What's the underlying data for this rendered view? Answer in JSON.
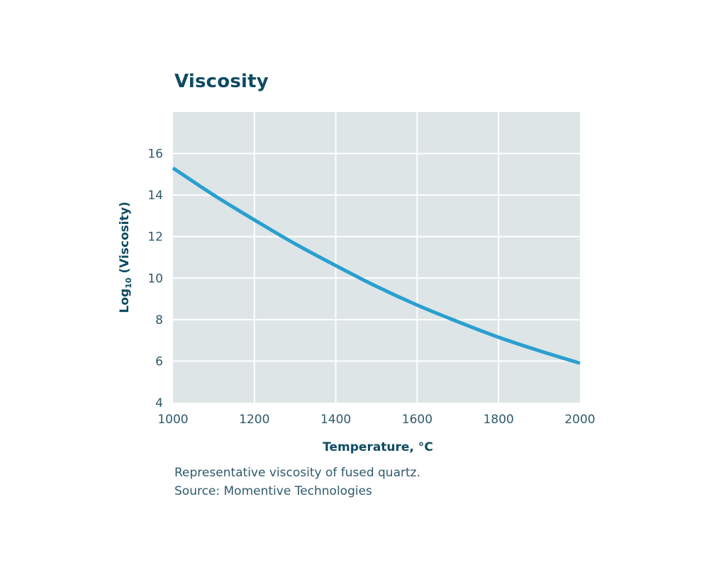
{
  "chart_data": {
    "type": "line",
    "title": "Viscosity",
    "xlabel": "Temperature, °C",
    "ylabel_main": "Log",
    "ylabel_subscript": "10",
    "ylabel_rest": " (Viscosity)",
    "xlim": [
      1000,
      2000
    ],
    "ylim": [
      4,
      18
    ],
    "x_ticks": [
      "1000",
      "1200",
      "1400",
      "1600",
      "1800",
      "2000"
    ],
    "y_ticks": [
      "4",
      "6",
      "8",
      "10",
      "12",
      "14",
      "16"
    ],
    "grid": true,
    "colors": {
      "line": "#2a9fd0",
      "plot_bg": "#dde5e7",
      "grid": "#ffffff",
      "title": "#0e4b63"
    },
    "series": [
      {
        "x": [
          1000,
          1100,
          1200,
          1300,
          1400,
          1500,
          1600,
          1700,
          1800,
          1900,
          2000
        ],
        "y": [
          15.3,
          14.0,
          12.8,
          11.65,
          10.6,
          9.6,
          8.7,
          7.9,
          7.15,
          6.5,
          5.9
        ]
      }
    ]
  },
  "caption": {
    "line1": "Representative viscosity of fused quartz.",
    "line2": "Source: Momentive Technologies"
  }
}
